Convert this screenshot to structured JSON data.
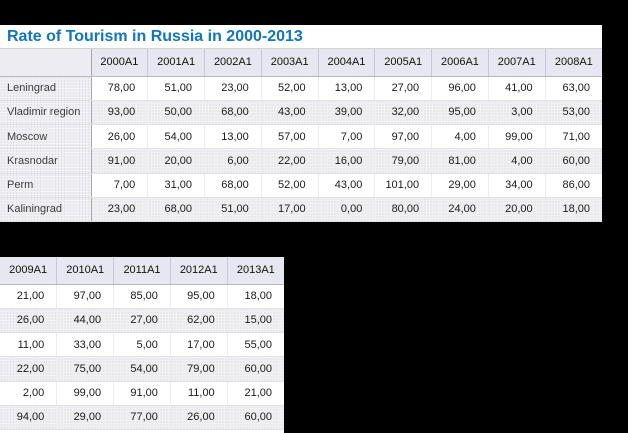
{
  "title": "Rate of Tourism in Russia in 2000-2013",
  "colors": {
    "page_background": "#000000",
    "panel_background": "#ffffff",
    "title_text": "#1176bd",
    "header_background": "#e7e7f1",
    "alt_row_background": "#f1f1f4",
    "label_column_background": "#f2f2f5"
  },
  "value_display_suffix": ",00",
  "chart_data": {
    "type": "table",
    "title": "Rate of Tourism in Russia in 2000-2013",
    "columns": [
      "2000A1",
      "2001A1",
      "2002A1",
      "2003A1",
      "2004A1",
      "2005A1",
      "2006A1",
      "2007A1",
      "2008A1",
      "2009A1",
      "2010A1",
      "2011A1",
      "2012A1",
      "2013A1"
    ],
    "rows": [
      "Leningrad",
      "Vladimir region",
      "Moscow",
      "Krasnodar",
      "Perm",
      "Kaliningrad"
    ],
    "values": [
      [
        78,
        51,
        23,
        52,
        13,
        27,
        96,
        41,
        63,
        21,
        97,
        85,
        95,
        18
      ],
      [
        93,
        50,
        68,
        43,
        39,
        32,
        95,
        3,
        53,
        26,
        44,
        27,
        62,
        15
      ],
      [
        26,
        54,
        13,
        57,
        7,
        97,
        4,
        99,
        71,
        11,
        33,
        5,
        17,
        55
      ],
      [
        91,
        20,
        6,
        22,
        16,
        79,
        81,
        4,
        60,
        22,
        75,
        54,
        79,
        60
      ],
      [
        7,
        31,
        68,
        52,
        43,
        101,
        29,
        34,
        86,
        2,
        99,
        91,
        11,
        21
      ],
      [
        23,
        68,
        51,
        17,
        0,
        80,
        24,
        20,
        18,
        94,
        29,
        77,
        26,
        60
      ]
    ],
    "value_format": "two decimals with comma separator, e.g. 78,00",
    "layout": {
      "part1_columns": [
        "2000A1",
        "2001A1",
        "2002A1",
        "2003A1",
        "2004A1",
        "2005A1",
        "2006A1",
        "2007A1",
        "2008A1"
      ],
      "part2_columns": [
        "2009A1",
        "2010A1",
        "2011A1",
        "2012A1",
        "2013A1"
      ],
      "part1_has_row_labels": true,
      "part2_has_row_labels": false,
      "alternating_rows": true
    }
  }
}
